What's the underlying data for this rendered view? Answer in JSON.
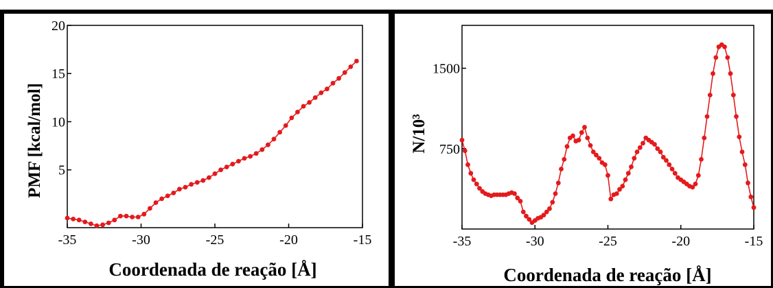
{
  "chart_data": [
    {
      "type": "line",
      "xlabel": "Coordenada de reação [Å]",
      "ylabel": "PMF [kcal/mol]",
      "xlim": [
        -35,
        -15
      ],
      "ylim": [
        -1,
        20
      ],
      "xticks": [
        -35,
        -30,
        -25,
        -20,
        -15
      ],
      "yticks": [
        5,
        10,
        15,
        20
      ],
      "grid": false,
      "series": [
        {
          "color": "#e41a1c",
          "x": [
            -35.0,
            -34.6,
            -34.2,
            -33.8,
            -33.4,
            -33.0,
            -32.6,
            -32.2,
            -31.8,
            -31.4,
            -31.0,
            -30.6,
            -30.2,
            -29.8,
            -29.4,
            -29.0,
            -28.6,
            -28.2,
            -27.8,
            -27.4,
            -27.0,
            -26.6,
            -26.2,
            -25.8,
            -25.4,
            -25.0,
            -24.6,
            -24.2,
            -23.8,
            -23.4,
            -23.0,
            -22.6,
            -22.2,
            -21.8,
            -21.4,
            -21.0,
            -20.6,
            -20.2,
            -19.8,
            -19.4,
            -19.0,
            -18.6,
            -18.2,
            -17.8,
            -17.4,
            -17.0,
            -16.6,
            -16.2,
            -15.8,
            -15.4
          ],
          "y": [
            0.0,
            -0.1,
            -0.2,
            -0.4,
            -0.6,
            -0.8,
            -0.7,
            -0.5,
            -0.2,
            0.2,
            0.2,
            0.1,
            0.1,
            0.4,
            1.0,
            1.6,
            2.0,
            2.3,
            2.6,
            3.0,
            3.2,
            3.5,
            3.7,
            3.9,
            4.2,
            4.6,
            5.0,
            5.3,
            5.6,
            5.9,
            6.2,
            6.4,
            6.7,
            7.1,
            7.6,
            8.2,
            8.9,
            9.6,
            10.4,
            11.0,
            11.6,
            12.0,
            12.5,
            13.0,
            13.4,
            14.0,
            14.5,
            15.1,
            15.7,
            16.3
          ]
        }
      ]
    },
    {
      "type": "line",
      "xlabel": "Coordenada de reação [Å]",
      "ylabel": "N/10³",
      "xlim": [
        -35,
        -15
      ],
      "ylim": [
        0,
        1900
      ],
      "xticks": [
        -35,
        -30,
        -25,
        -20,
        -15
      ],
      "yticks": [
        750,
        1500
      ],
      "grid": false,
      "series": [
        {
          "color": "#e41a1c",
          "x": [
            -35.0,
            -34.8,
            -34.6,
            -34.4,
            -34.2,
            -34.0,
            -33.8,
            -33.6,
            -33.4,
            -33.2,
            -33.0,
            -32.8,
            -32.6,
            -32.4,
            -32.2,
            -32.0,
            -31.8,
            -31.6,
            -31.4,
            -31.2,
            -31.0,
            -30.8,
            -30.6,
            -30.4,
            -30.2,
            -30.0,
            -29.8,
            -29.6,
            -29.4,
            -29.2,
            -29.0,
            -28.8,
            -28.6,
            -28.4,
            -28.2,
            -28.0,
            -27.8,
            -27.6,
            -27.4,
            -27.2,
            -27.0,
            -26.8,
            -26.6,
            -26.4,
            -26.2,
            -26.0,
            -25.8,
            -25.6,
            -25.4,
            -25.2,
            -25.0,
            -24.8,
            -24.6,
            -24.4,
            -24.2,
            -24.0,
            -23.8,
            -23.6,
            -23.4,
            -23.2,
            -23.0,
            -22.8,
            -22.6,
            -22.4,
            -22.2,
            -22.0,
            -21.8,
            -21.6,
            -21.4,
            -21.2,
            -21.0,
            -20.8,
            -20.6,
            -20.4,
            -20.2,
            -20.0,
            -19.8,
            -19.6,
            -19.4,
            -19.2,
            -19.0,
            -18.8,
            -18.6,
            -18.4,
            -18.2,
            -18.0,
            -17.8,
            -17.6,
            -17.4,
            -17.2,
            -17.0,
            -16.8,
            -16.6,
            -16.4,
            -16.2,
            -16.0,
            -15.8,
            -15.6,
            -15.4,
            -15.2,
            -15.0
          ],
          "y": [
            830,
            730,
            600,
            520,
            460,
            420,
            380,
            350,
            330,
            320,
            310,
            320,
            320,
            320,
            320,
            320,
            330,
            340,
            330,
            290,
            260,
            160,
            120,
            90,
            60,
            80,
            100,
            110,
            130,
            160,
            190,
            250,
            330,
            430,
            560,
            650,
            770,
            850,
            870,
            820,
            830,
            900,
            950,
            850,
            780,
            720,
            690,
            660,
            620,
            600,
            500,
            280,
            320,
            330,
            370,
            400,
            460,
            520,
            580,
            660,
            720,
            760,
            800,
            850,
            830,
            810,
            790,
            750,
            720,
            670,
            640,
            600,
            560,
            520,
            480,
            460,
            440,
            420,
            400,
            390,
            420,
            500,
            650,
            850,
            1050,
            1250,
            1450,
            1600,
            1700,
            1720,
            1700,
            1600,
            1450,
            1250,
            1050,
            860,
            720,
            600,
            430,
            300,
            200
          ]
        }
      ]
    }
  ]
}
